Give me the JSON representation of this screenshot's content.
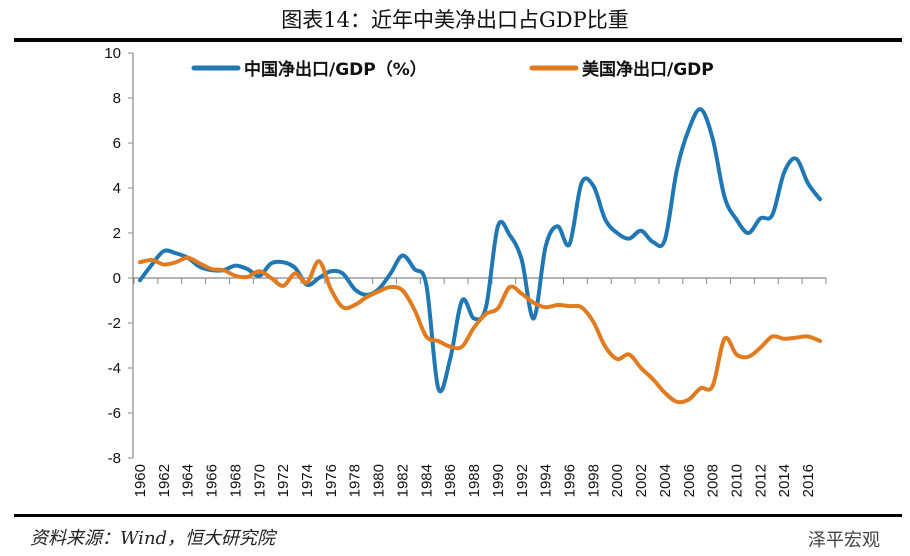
{
  "title": "图表14：近年中美净出口占GDP比重",
  "source": "资料来源：Wind，恒大研究院",
  "brand": "泽平宏观",
  "chart_data": {
    "type": "line",
    "title": "图表14：近年中美净出口占GDP比重",
    "xlabel": "",
    "ylabel": "",
    "ylim": [
      -8,
      10
    ],
    "yticks": [
      -8,
      -6,
      -4,
      -2,
      0,
      2,
      4,
      6,
      8,
      10
    ],
    "xticks": [
      "1960",
      "1962",
      "1964",
      "1966",
      "1968",
      "1970",
      "1972",
      "1974",
      "1976",
      "1978",
      "1980",
      "1982",
      "1984",
      "1986",
      "1988",
      "1990",
      "1992",
      "1994",
      "1996",
      "1998",
      "2000",
      "2002",
      "2004",
      "2006",
      "2008",
      "2010",
      "2012",
      "2014",
      "2016"
    ],
    "legend_position": "top",
    "grid": false,
    "x": [
      1960,
      1961,
      1962,
      1963,
      1964,
      1965,
      1966,
      1967,
      1968,
      1969,
      1970,
      1971,
      1972,
      1973,
      1974,
      1975,
      1976,
      1977,
      1978,
      1979,
      1980,
      1981,
      1982,
      1983,
      1984,
      1985,
      1986,
      1987,
      1988,
      1989,
      1990,
      1991,
      1992,
      1993,
      1994,
      1995,
      1996,
      1997,
      1998,
      1999,
      2000,
      2001,
      2002,
      2003,
      2004,
      2005,
      2006,
      2007,
      2008,
      2009,
      2010,
      2011,
      2012,
      2013,
      2014,
      2015,
      2016,
      2017
    ],
    "series": [
      {
        "name": "中国净出口/GDP（%）",
        "color": "#1f77b4",
        "values": [
          -0.1,
          0.6,
          1.2,
          1.1,
          0.9,
          0.5,
          0.35,
          0.35,
          0.55,
          0.4,
          0.1,
          0.65,
          0.7,
          0.45,
          -0.3,
          0.0,
          0.3,
          0.2,
          -0.5,
          -0.75,
          -0.5,
          0.2,
          1.0,
          0.4,
          -0.3,
          -4.9,
          -3.6,
          -1.0,
          -1.8,
          -1.3,
          2.3,
          1.9,
          0.8,
          -1.8,
          1.4,
          2.3,
          1.5,
          4.2,
          4.1,
          2.6,
          2.0,
          1.75,
          2.1,
          1.6,
          1.7,
          4.8,
          6.6,
          7.5,
          6.2,
          3.6,
          2.6,
          2.0,
          2.65,
          2.8,
          4.7,
          5.3,
          4.2,
          3.5
        ]
      },
      {
        "name": "美国净出口/GDP",
        "color": "#e07b1f",
        "values": [
          0.7,
          0.8,
          0.6,
          0.7,
          0.9,
          0.65,
          0.4,
          0.35,
          0.1,
          0.05,
          0.3,
          0.0,
          -0.35,
          0.2,
          -0.2,
          0.75,
          -0.5,
          -1.3,
          -1.2,
          -0.85,
          -0.6,
          -0.4,
          -0.55,
          -1.4,
          -2.6,
          -2.8,
          -3.05,
          -3.05,
          -2.2,
          -1.6,
          -1.35,
          -0.4,
          -0.7,
          -1.1,
          -1.3,
          -1.2,
          -1.25,
          -1.3,
          -1.95,
          -3.05,
          -3.6,
          -3.4,
          -4.0,
          -4.5,
          -5.1,
          -5.5,
          -5.4,
          -4.9,
          -4.8,
          -2.7,
          -3.4,
          -3.5,
          -3.1,
          -2.6,
          -2.7,
          -2.65,
          -2.6,
          -2.8
        ]
      }
    ]
  }
}
